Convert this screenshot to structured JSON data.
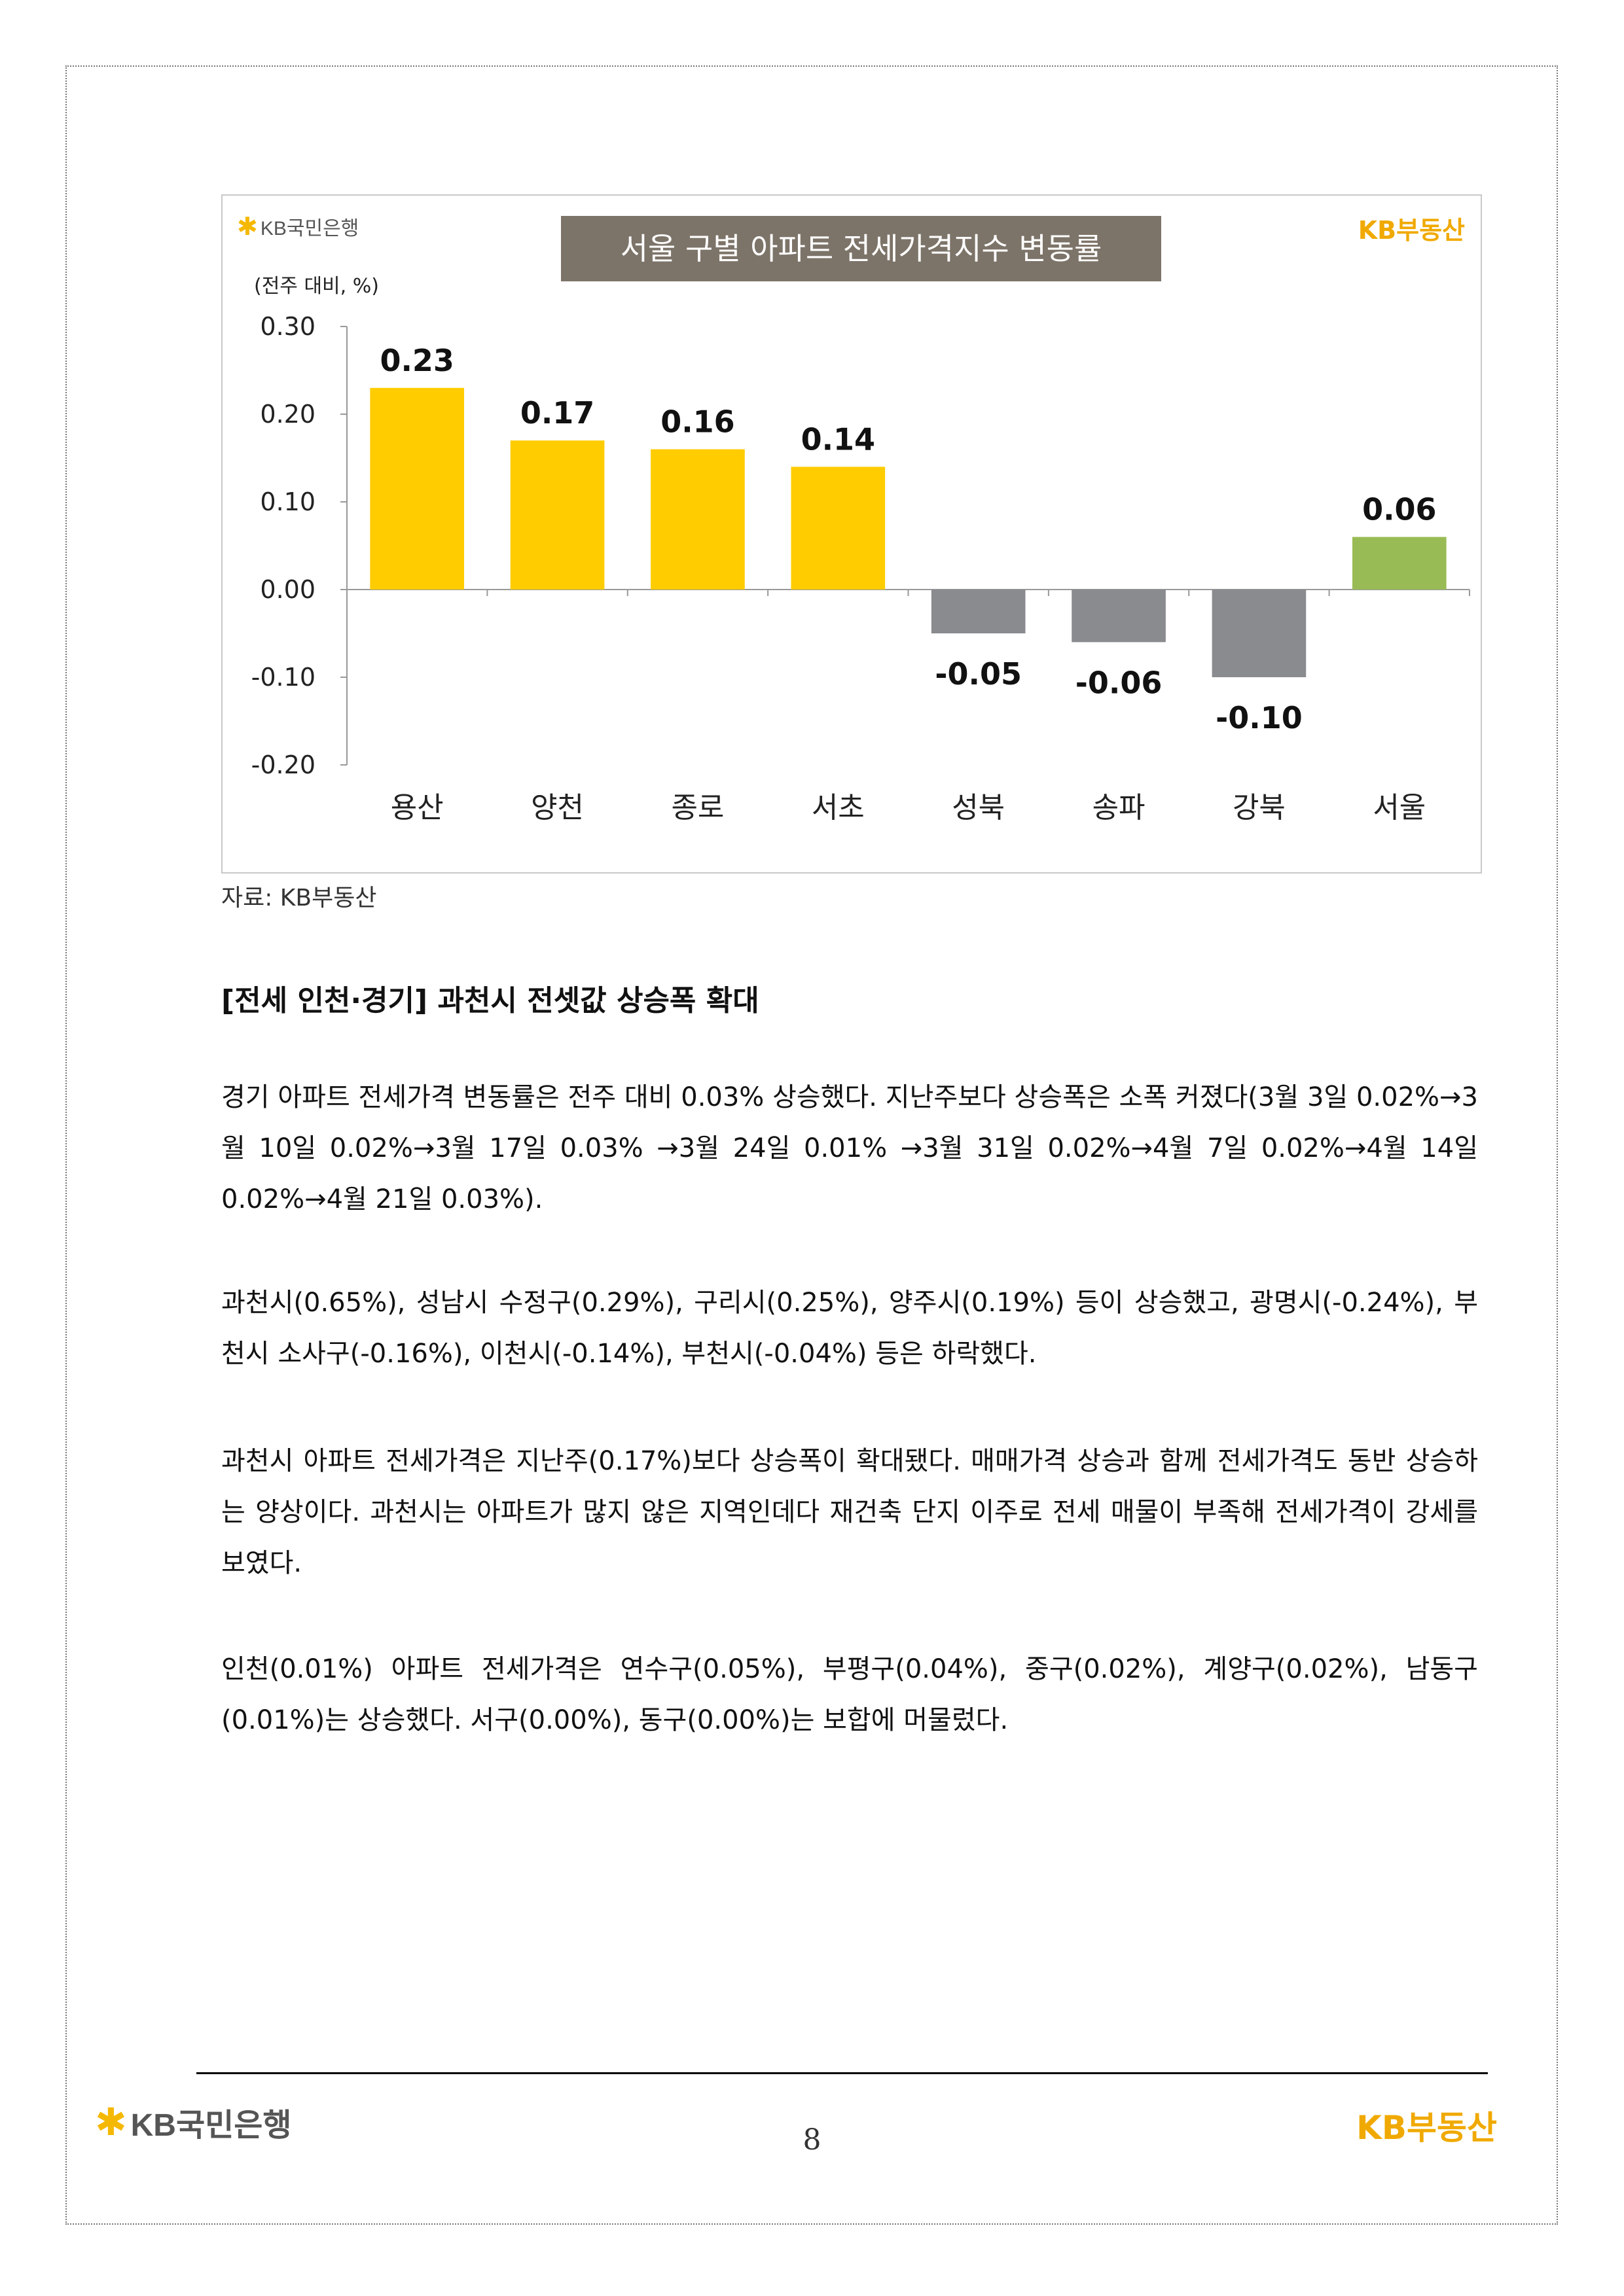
{
  "chart": {
    "logo_left": "KB국민은행",
    "logo_right": "KB부동산",
    "title": "서울 구별 아파트 전세가격지수 변동률",
    "unit_label": "(전주 대비, %)"
  },
  "chart_data": {
    "type": "bar",
    "title": "서울 구별 아파트 전세가격지수 변동률",
    "ylabel": "(전주 대비, %)",
    "categories": [
      "용산",
      "양천",
      "종로",
      "서초",
      "성북",
      "송파",
      "강북",
      "서울"
    ],
    "values": [
      0.23,
      0.17,
      0.16,
      0.14,
      -0.05,
      -0.06,
      -0.1,
      0.06
    ],
    "value_labels": [
      "0.23",
      "0.17",
      "0.16",
      "0.14",
      "-0.05",
      "-0.06",
      "-0.10",
      "0.06"
    ],
    "ylim": [
      -0.2,
      0.3
    ],
    "yticks": [
      0.3,
      0.2,
      0.1,
      0.0,
      -0.1,
      -0.2
    ],
    "ytick_labels": [
      "0.30",
      "0.20",
      "0.10",
      "0.00",
      "-0.10",
      "-0.20"
    ],
    "bar_colors": [
      "#ffcc00",
      "#ffcc00",
      "#ffcc00",
      "#ffcc00",
      "#898b8e",
      "#898b8e",
      "#898b8e",
      "#99bb55"
    ],
    "grid": false
  },
  "source": "자료: KB부동산",
  "section_heading": "[전세 인천·경기] 과천시 전셋값 상승폭 확대",
  "paragraphs": [
    "경기 아파트 전세가격 변동률은 전주 대비 0.03% 상승했다. 지난주보다 상승폭은 소폭 커졌다(3월 3일 0.02%→3월 10일 0.02%→3월 17일 0.03% →3월 24일 0.01% →3월 31일 0.02%→4월 7일 0.02%→4월 14일 0.02%→4월 21일 0.03%).",
    "과천시(0.65%), 성남시 수정구(0.29%), 구리시(0.25%), 양주시(0.19%) 등이 상승했고, 광명시(-0.24%), 부천시 소사구(-0.16%), 이천시(-0.14%), 부천시(-0.04%) 등은 하락했다.",
    "과천시 아파트 전세가격은 지난주(0.17%)보다 상승폭이 확대됐다. 매매가격 상승과 함께 전세가격도 동반 상승하는 양상이다. 과천시는 아파트가 많지 않은 지역인데다 재건축 단지 이주로 전세 매물이 부족해 전세가격이 강세를 보였다.",
    "인천(0.01%) 아파트 전세가격은 연수구(0.05%), 부평구(0.04%), 중구(0.02%), 계양구(0.02%), 남동구(0.01%)는 상승했다. 서구(0.00%), 동구(0.00%)는 보합에 머물렀다."
  ],
  "footer": {
    "logo_left": "KB국민은행",
    "logo_right": "KB부동산",
    "page_number": "8"
  }
}
